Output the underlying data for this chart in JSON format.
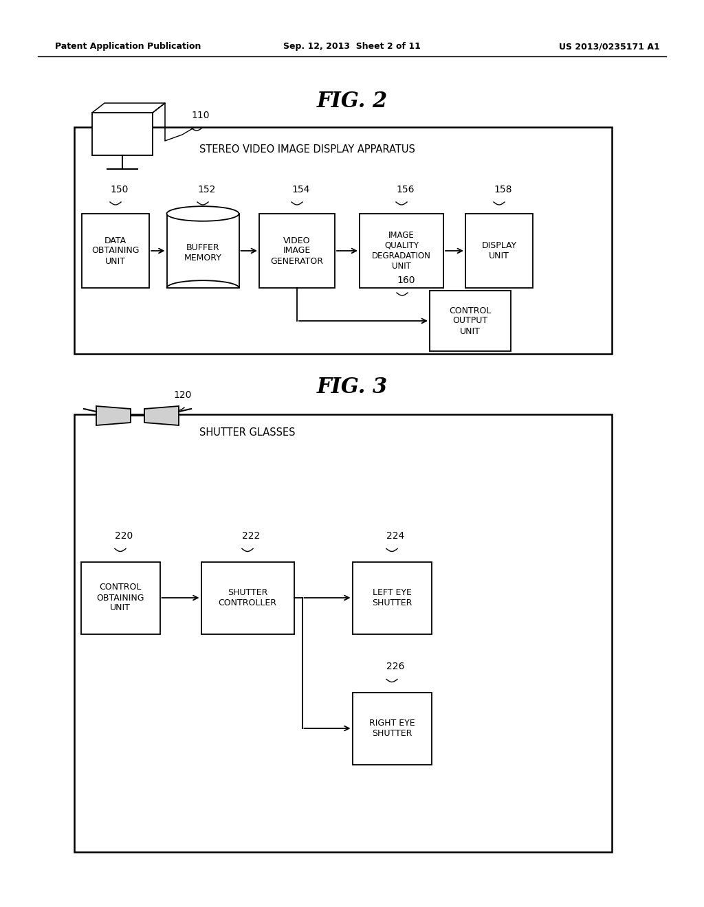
{
  "bg_color": "#ffffff",
  "header_left": "Patent Application Publication",
  "header_center": "Sep. 12, 2013  Sheet 2 of 11",
  "header_right": "US 2013/0235171 A1",
  "fig2_title": "FIG. 2",
  "fig3_title": "FIG. 3",
  "fig2_label": "STEREO VIDEO IMAGE DISPLAY APPARATUS",
  "fig3_label": "SHUTTER GLASSES"
}
